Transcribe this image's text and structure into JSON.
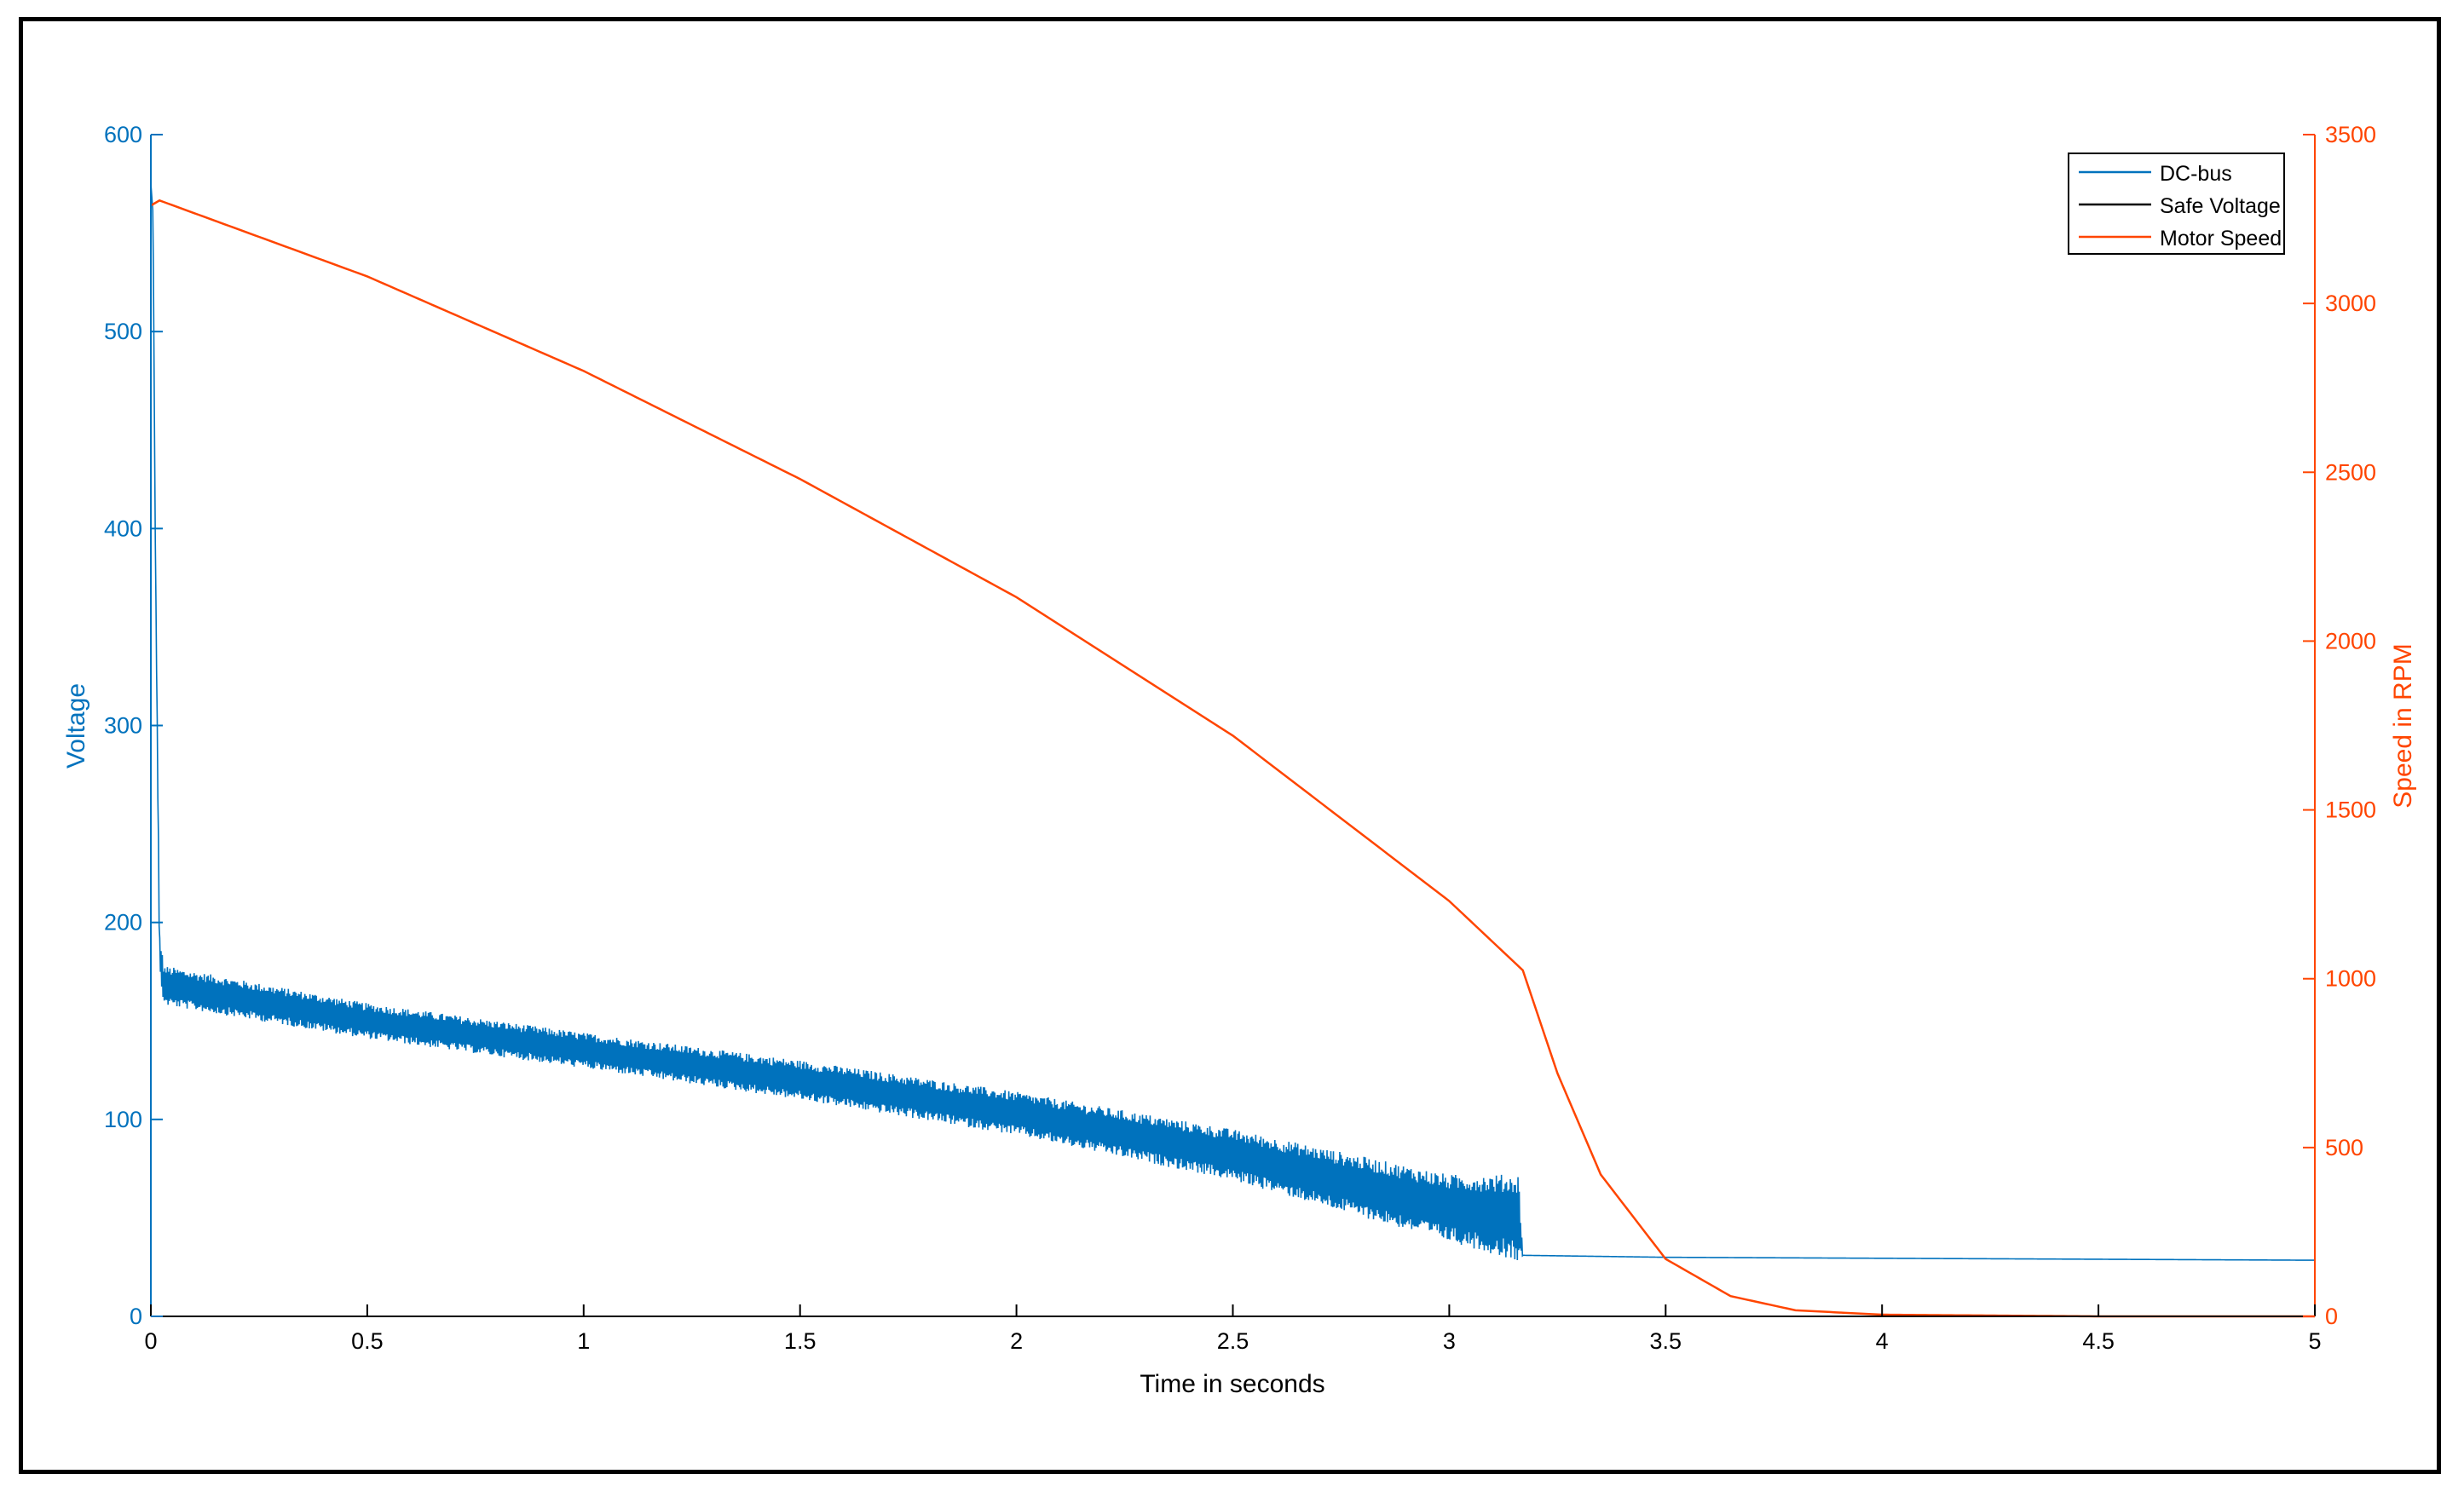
{
  "chart_data": {
    "type": "line",
    "xlabel": "Time in seconds",
    "ylabel_left": "Voltage",
    "ylabel_right": "Speed in RPM",
    "xlim": [
      0,
      5
    ],
    "ylim_left": [
      0,
      600
    ],
    "ylim_right": [
      0,
      3500
    ],
    "x_ticks": [
      0,
      0.5,
      1,
      1.5,
      2,
      2.5,
      3,
      3.5,
      4,
      4.5,
      5
    ],
    "x_tick_labels": [
      "0",
      "0.5",
      "1",
      "1.5",
      "2",
      "2.5",
      "3",
      "3.5",
      "4",
      "4.5",
      "5"
    ],
    "y_left_ticks": [
      0,
      100,
      200,
      300,
      400,
      500,
      600
    ],
    "y_left_tick_labels": [
      "0",
      "100",
      "200",
      "300",
      "400",
      "500",
      "600"
    ],
    "y_right_ticks": [
      0,
      500,
      1000,
      1500,
      2000,
      2500,
      3000,
      3500
    ],
    "y_right_tick_labels": [
      "0",
      "500",
      "1000",
      "1500",
      "2000",
      "2500",
      "3000",
      "3500"
    ],
    "grid": false,
    "legend_position": "top-right",
    "colors": {
      "dc_bus": "#0072BD",
      "safe_voltage": "#000000",
      "motor_speed": "#FF4500",
      "left_axis": "#0072BD",
      "right_axis": "#FF4500"
    },
    "series": [
      {
        "name": "DC-bus",
        "axis": "left",
        "x": [
          0,
          0.005,
          0.01,
          0.02,
          0.03,
          0.5,
          1.0,
          1.5,
          2.0,
          2.5,
          3.0,
          3.16,
          3.17,
          3.5,
          4.0,
          4.5,
          5.0
        ],
        "y": [
          575,
          560,
          400,
          185,
          168,
          150,
          135,
          120,
          103,
          82,
          55,
          50,
          31,
          30,
          29.5,
          29,
          28.5
        ],
        "ripple_amplitude": [
          0,
          0,
          0,
          10,
          10,
          9,
          9,
          10,
          11,
          13,
          17,
          22,
          0,
          0,
          0,
          0,
          0
        ]
      },
      {
        "name": "Safe Voltage",
        "axis": "left",
        "x": [],
        "y": []
      },
      {
        "name": "Motor Speed",
        "axis": "right",
        "x": [
          0,
          0.02,
          0.5,
          1.0,
          1.5,
          2.0,
          2.5,
          3.0,
          3.17,
          3.25,
          3.35,
          3.5,
          3.65,
          3.8,
          4.0,
          4.5,
          5.0
        ],
        "y": [
          3290,
          3305,
          3080,
          2800,
          2480,
          2130,
          1720,
          1230,
          1025,
          720,
          420,
          170,
          60,
          18,
          5,
          0,
          0
        ]
      }
    ]
  }
}
